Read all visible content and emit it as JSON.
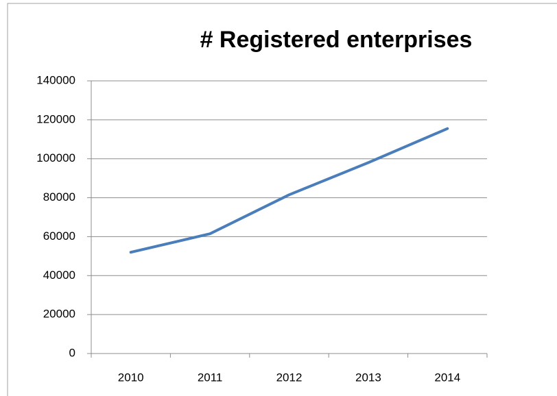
{
  "chart_data": {
    "type": "line",
    "title": "# Registered enterprises",
    "categories": [
      "2010",
      "2011",
      "2012",
      "2013",
      "2014"
    ],
    "series": [
      {
        "name": "# Registered enterprises",
        "color": "#4a7ebb",
        "values": [
          52000,
          61500,
          81500,
          98000,
          115500
        ]
      }
    ],
    "ylim": [
      0,
      140000
    ],
    "yticks": [
      0,
      20000,
      40000,
      60000,
      80000,
      100000,
      120000,
      140000
    ],
    "grid": true
  }
}
